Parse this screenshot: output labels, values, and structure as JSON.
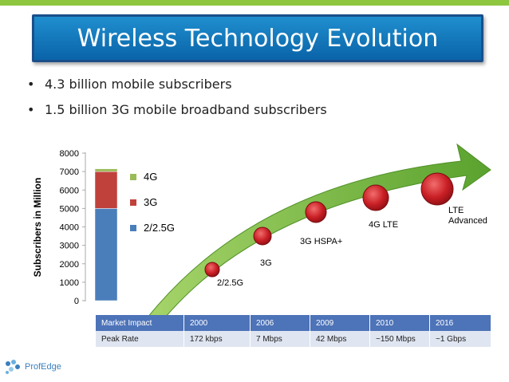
{
  "title": "Wireless Technology Evolution",
  "bullets": [
    "4.3 billion mobile subscribers",
    "1.5 billion 3G mobile broadband subscribers"
  ],
  "colors": {
    "top_bar": "#8dc63f",
    "title_bg": "#1477c0",
    "arrow_green": "#7fc040",
    "bubble_red": "#c81e24",
    "table_header": "#4d73b8",
    "table_row": "#dfe5f1"
  },
  "chart_data": {
    "type": "bar",
    "stacked": true,
    "ylabel": "Subscribers in Million",
    "ylim": [
      0,
      8000
    ],
    "yticks": [
      "0",
      "1000",
      "2000",
      "3000",
      "4000",
      "5000",
      "6000",
      "7000",
      "8000"
    ],
    "series": [
      {
        "name": "2/2.5G",
        "values": [
          5000
        ],
        "color": "#4a7ebb"
      },
      {
        "name": "3G",
        "values": [
          2000
        ],
        "color": "#c0413c"
      },
      {
        "name": "4G",
        "values": [
          150
        ],
        "color": "#9bbb59"
      }
    ],
    "legend_order": [
      "4G",
      "3G",
      "2/2.5G"
    ],
    "legend_position": "right"
  },
  "evolution": {
    "stages": [
      {
        "label": "2/2.5G"
      },
      {
        "label": "3G"
      },
      {
        "label": "3G HSPA+"
      },
      {
        "label": "4G LTE"
      },
      {
        "label": "LTE Advanced"
      }
    ]
  },
  "table": {
    "header": [
      "Market Impact",
      "2000",
      "2006",
      "2009",
      "2010",
      "2016"
    ],
    "rows": [
      [
        "Peak Rate",
        "172 kbps",
        "7 Mbps",
        "42 Mbps",
        "~150 Mbps",
        "~1 Gbps"
      ]
    ]
  },
  "logo": {
    "name": "ProfEdge",
    "icon": "dots-logo-icon"
  }
}
